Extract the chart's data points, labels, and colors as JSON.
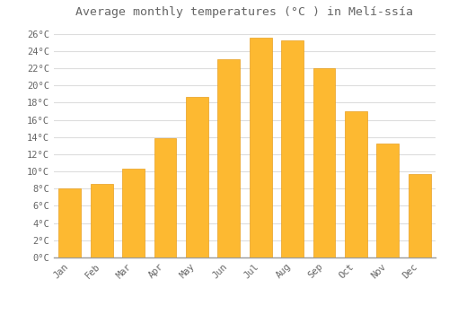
{
  "title": "Average monthly temperatures (°C ) in Melí­ssía",
  "months": [
    "Jan",
    "Feb",
    "Mar",
    "Apr",
    "May",
    "Jun",
    "Jul",
    "Aug",
    "Sep",
    "Oct",
    "Nov",
    "Dec"
  ],
  "values": [
    8.0,
    8.5,
    10.3,
    13.9,
    18.7,
    23.0,
    25.5,
    25.2,
    22.0,
    17.0,
    13.2,
    9.7
  ],
  "bar_color": "#FDB931",
  "bar_edge_color": "#E8A020",
  "background_color": "#FFFFFF",
  "grid_color": "#DDDDDD",
  "text_color": "#666666",
  "ylim": [
    0,
    27
  ],
  "yticks": [
    0,
    2,
    4,
    6,
    8,
    10,
    12,
    14,
    16,
    18,
    20,
    22,
    24,
    26
  ],
  "title_fontsize": 9.5,
  "tick_fontsize": 7.5
}
